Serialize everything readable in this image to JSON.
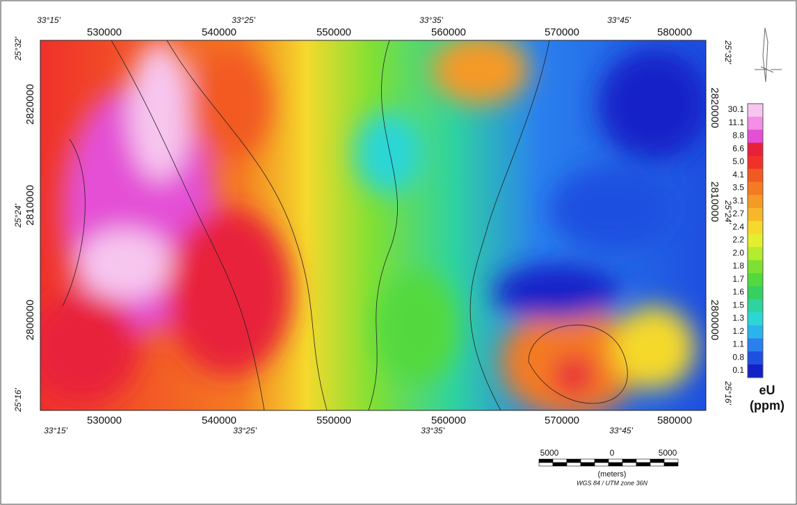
{
  "map": {
    "top_degree_labels": [
      "33°15'",
      "33°25'",
      "33°35'",
      "33°45'"
    ],
    "bottom_degree_labels": [
      "33°15'",
      "33°25'",
      "33°35'",
      "33°45'"
    ],
    "top_easting": [
      "530000",
      "540000",
      "550000",
      "560000",
      "570000",
      "580000"
    ],
    "bottom_easting": [
      "530000",
      "540000",
      "550000",
      "560000",
      "570000",
      "580000"
    ],
    "left_northing": [
      "2820000",
      "2810000",
      "2800000"
    ],
    "right_northing": [
      "2820000",
      "2810000",
      "2800000"
    ],
    "left_latitude": [
      "25°32'",
      "25°24'",
      "25°16'"
    ],
    "right_latitude": [
      "25°32'",
      "25°24'",
      "25°16'"
    ]
  },
  "legend": {
    "labels": [
      "30.1",
      "11.1",
      "8.8",
      "6.6",
      "5.0",
      "4.1",
      "3.5",
      "3.1",
      "2.7",
      "2.4",
      "2.2",
      "2.0",
      "1.8",
      "1.7",
      "1.6",
      "1.5",
      "1.3",
      "1.2",
      "1.1",
      "0.8",
      "0.1"
    ],
    "colors": [
      "#f7c6ef",
      "#f48ee6",
      "#e44fd6",
      "#e8203a",
      "#f0312a",
      "#f25a23",
      "#f47b22",
      "#f59a25",
      "#f7b72a",
      "#f5d92c",
      "#e4ee2e",
      "#b4ec2e",
      "#7fe034",
      "#52d93e",
      "#35d060",
      "#2fd3a0",
      "#2cd6d6",
      "#2bb3ee",
      "#2a80ee",
      "#1e4fe0",
      "#1221c8"
    ],
    "title": "eU",
    "unit": "(ppm)"
  },
  "scale_bar": {
    "labels": [
      "5000",
      "0",
      "5000"
    ],
    "unit": "(meters)",
    "projection": "WGS 84 / UTM zone 36N"
  }
}
